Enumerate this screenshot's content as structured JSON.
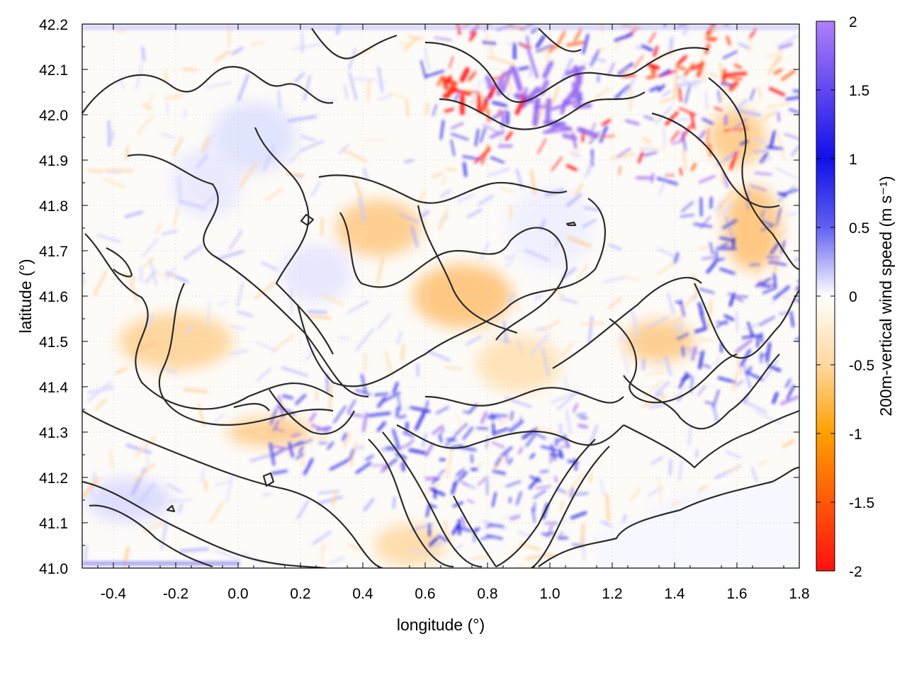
{
  "chart_data": {
    "type": "heatmap",
    "title": "",
    "xlabel": "longitude (°)",
    "ylabel": "latitude (°)",
    "xlim": [
      -0.5,
      1.8
    ],
    "ylim": [
      41.0,
      42.2
    ],
    "x_ticks": [
      "-0.4",
      "-0.2",
      "0.0",
      "0.2",
      "0.4",
      "0.6",
      "0.8",
      "1.0",
      "1.2",
      "1.4",
      "1.6",
      "1.8"
    ],
    "y_ticks": [
      "41.0",
      "41.1",
      "41.2",
      "41.3",
      "41.4",
      "41.5",
      "41.6",
      "41.7",
      "41.8",
      "41.9",
      "42.0",
      "42.1",
      "42.2"
    ],
    "colorbar": {
      "label": "200m-vertical wind speed (m s⁻¹)",
      "range": [
        -2,
        2
      ],
      "ticks": [
        "2",
        "1.5",
        "1",
        "0.5",
        "0",
        "-0.5",
        "-1",
        "-1.5",
        "-2"
      ],
      "colors": {
        "max": "#a070f0",
        "high": "#1010e0",
        "mid_pos": "#9090f0",
        "zero": "#ffffff",
        "mid_neg": "#ffd090",
        "low": "#ffa000",
        "min": "#ff0000"
      }
    },
    "grid": true,
    "overlay": "terrain contour lines (black)",
    "notes": "Downdrafts (orange/red) and updrafts (blue/purple); strongest updrafts in the NE and near 0.9–1.1°E, 41.2–41.3°N"
  }
}
